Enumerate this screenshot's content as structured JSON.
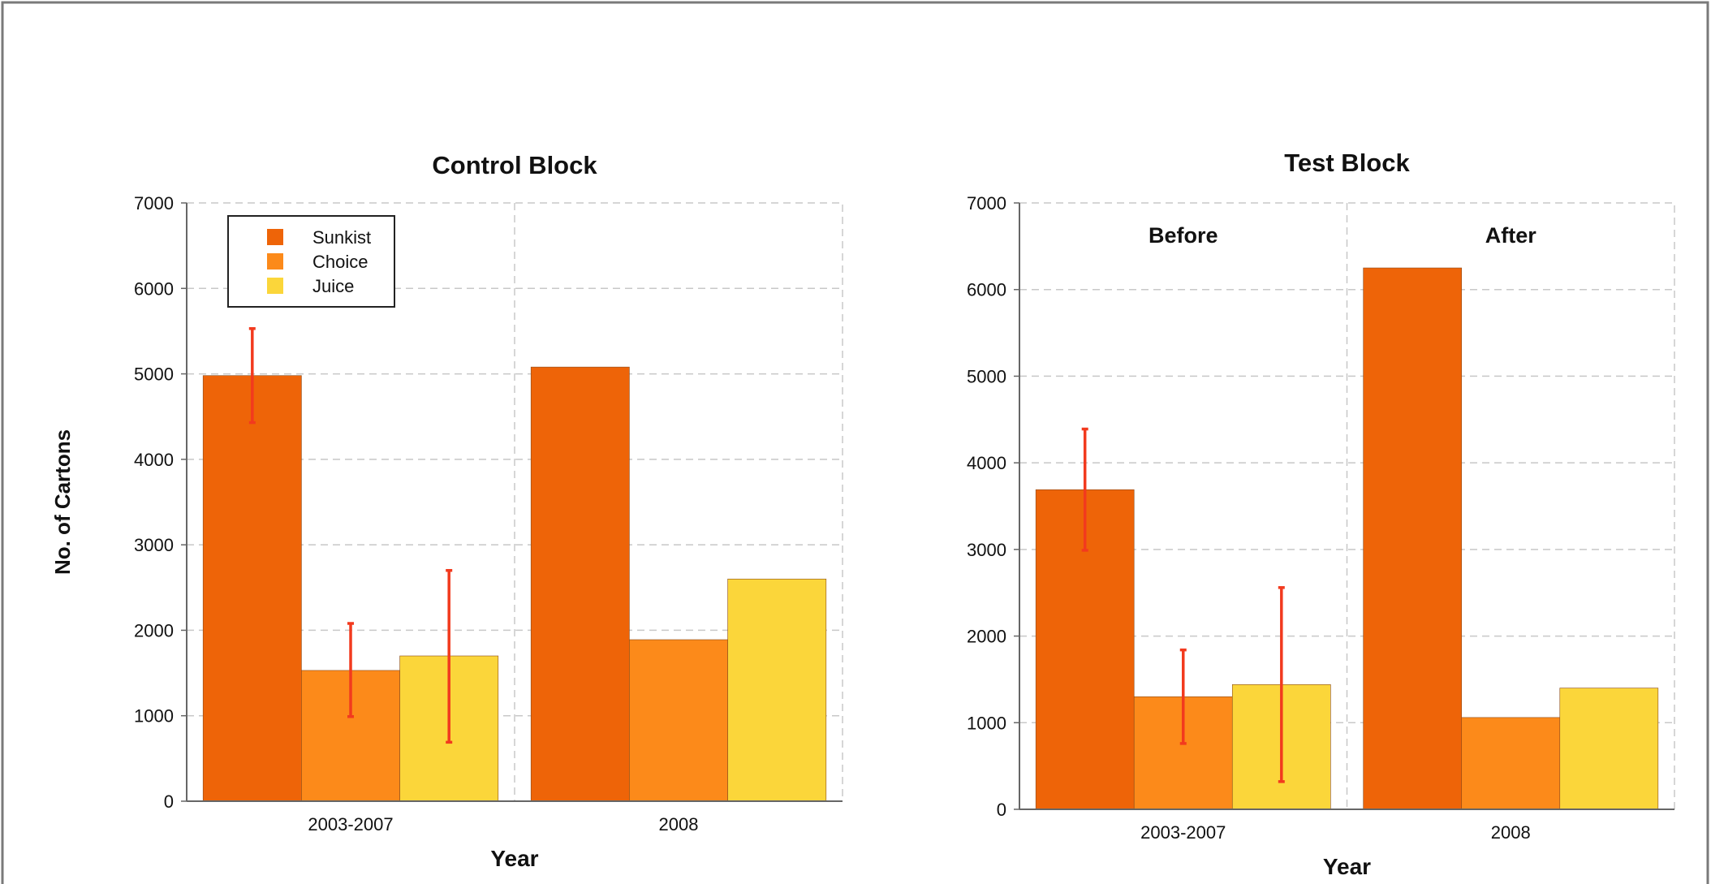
{
  "chart_data": [
    {
      "type": "bar",
      "title": "Control Block",
      "xlabel": "Year",
      "ylabel": "No. of Cartons",
      "ylim": [
        0,
        7000
      ],
      "yticks": [
        0,
        1000,
        2000,
        3000,
        4000,
        5000,
        6000,
        7000
      ],
      "categories": [
        "2003-2007",
        "2008"
      ],
      "section_labels": [],
      "grid": true,
      "legend": {
        "placement": "top-left",
        "entries": [
          "Sunkist",
          "Choice",
          "Juice"
        ]
      },
      "series": [
        {
          "name": "Sunkist",
          "color": "#EE6408",
          "values": [
            4980,
            5080
          ],
          "error": [
            [
              4430,
              5530
            ],
            null
          ]
        },
        {
          "name": "Choice",
          "color": "#FC8A1A",
          "values": [
            1530,
            1890
          ],
          "error": [
            [
              990,
              2080
            ],
            null
          ]
        },
        {
          "name": "Juice",
          "color": "#FBD63A",
          "values": [
            1700,
            2600
          ],
          "error": [
            [
              690,
              2700
            ],
            null
          ]
        }
      ]
    },
    {
      "type": "bar",
      "title": "Test Block",
      "xlabel": "Year",
      "ylabel": "",
      "ylim": [
        0,
        7000
      ],
      "yticks": [
        0,
        1000,
        2000,
        3000,
        4000,
        5000,
        6000,
        7000
      ],
      "categories": [
        "2003-2007",
        "2008"
      ],
      "section_labels": [
        "Before",
        "After"
      ],
      "grid": true,
      "legend": null,
      "series": [
        {
          "name": "Sunkist",
          "color": "#EE6408",
          "values": [
            3690,
            6250
          ],
          "error": [
            [
              2990,
              4390
            ],
            null
          ]
        },
        {
          "name": "Choice",
          "color": "#FC8A1A",
          "values": [
            1300,
            1060
          ],
          "error": [
            [
              760,
              1840
            ],
            null
          ]
        },
        {
          "name": "Juice",
          "color": "#FBD63A",
          "values": [
            1440,
            1400
          ],
          "error": [
            [
              320,
              2560
            ],
            null
          ]
        }
      ]
    }
  ],
  "colors": {
    "error_bar": "#F23A1E",
    "grid": "#c8c8c8",
    "frame": "#666666"
  }
}
